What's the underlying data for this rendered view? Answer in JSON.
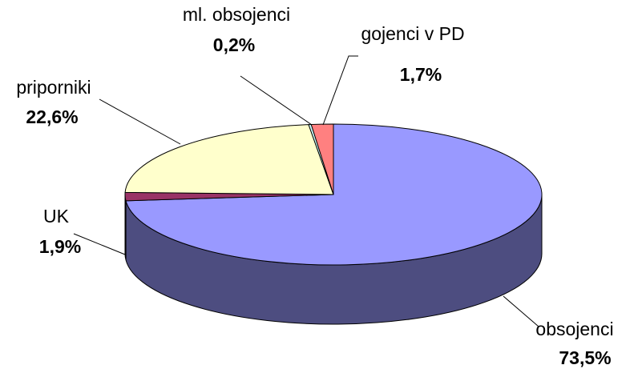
{
  "chart_data": {
    "type": "pie",
    "categories": [
      "obsojenci",
      "UK",
      "priporniki",
      "ml. obsojenci",
      "gojenci v PD"
    ],
    "values": [
      73.5,
      1.9,
      22.6,
      0.2,
      1.7
    ],
    "value_labels": [
      "73,5%",
      "1,9%",
      "22,6%",
      "0,2%",
      "1,7%"
    ],
    "colors": [
      "#9999ff",
      "#993366",
      "#ffffcc",
      "#ccffff",
      "#ff8080"
    ]
  }
}
